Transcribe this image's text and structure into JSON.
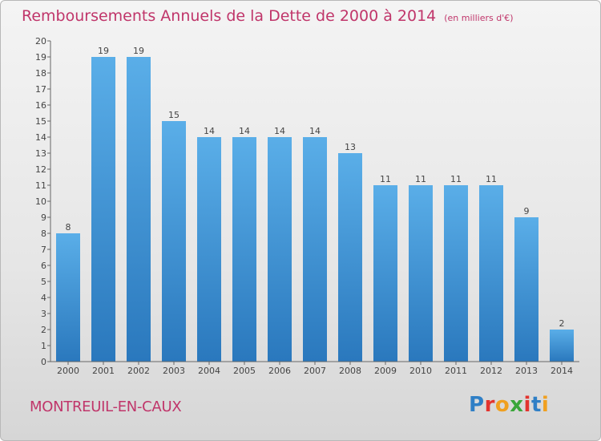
{
  "title": "Remboursements Annuels de la Dette de 2000 à 2014",
  "unit_note": "(en milliers d'€)",
  "city": "MONTREUIL-EN-CAUX",
  "logo_text": "Proxiti",
  "colors": {
    "accent": "#c0356a",
    "bar_top": "#5aaee8",
    "bar_bottom": "#2a78bd",
    "axis": "#555555"
  },
  "chart_data": {
    "type": "bar",
    "title": "Remboursements Annuels de la Dette de 2000 à 2014",
    "xlabel": "",
    "ylabel": "",
    "ylim": [
      0,
      20
    ],
    "yticks": [
      0,
      1,
      2,
      3,
      4,
      5,
      6,
      7,
      8,
      9,
      10,
      11,
      12,
      13,
      14,
      15,
      16,
      17,
      18,
      19,
      20
    ],
    "categories": [
      "2000",
      "2001",
      "2002",
      "2003",
      "2004",
      "2005",
      "2006",
      "2007",
      "2008",
      "2009",
      "2010",
      "2011",
      "2012",
      "2013",
      "2014"
    ],
    "values": [
      8,
      19,
      19,
      15,
      14,
      14,
      14,
      14,
      13,
      11,
      11,
      11,
      11,
      9,
      2
    ],
    "grid": false,
    "data_labels": true
  }
}
